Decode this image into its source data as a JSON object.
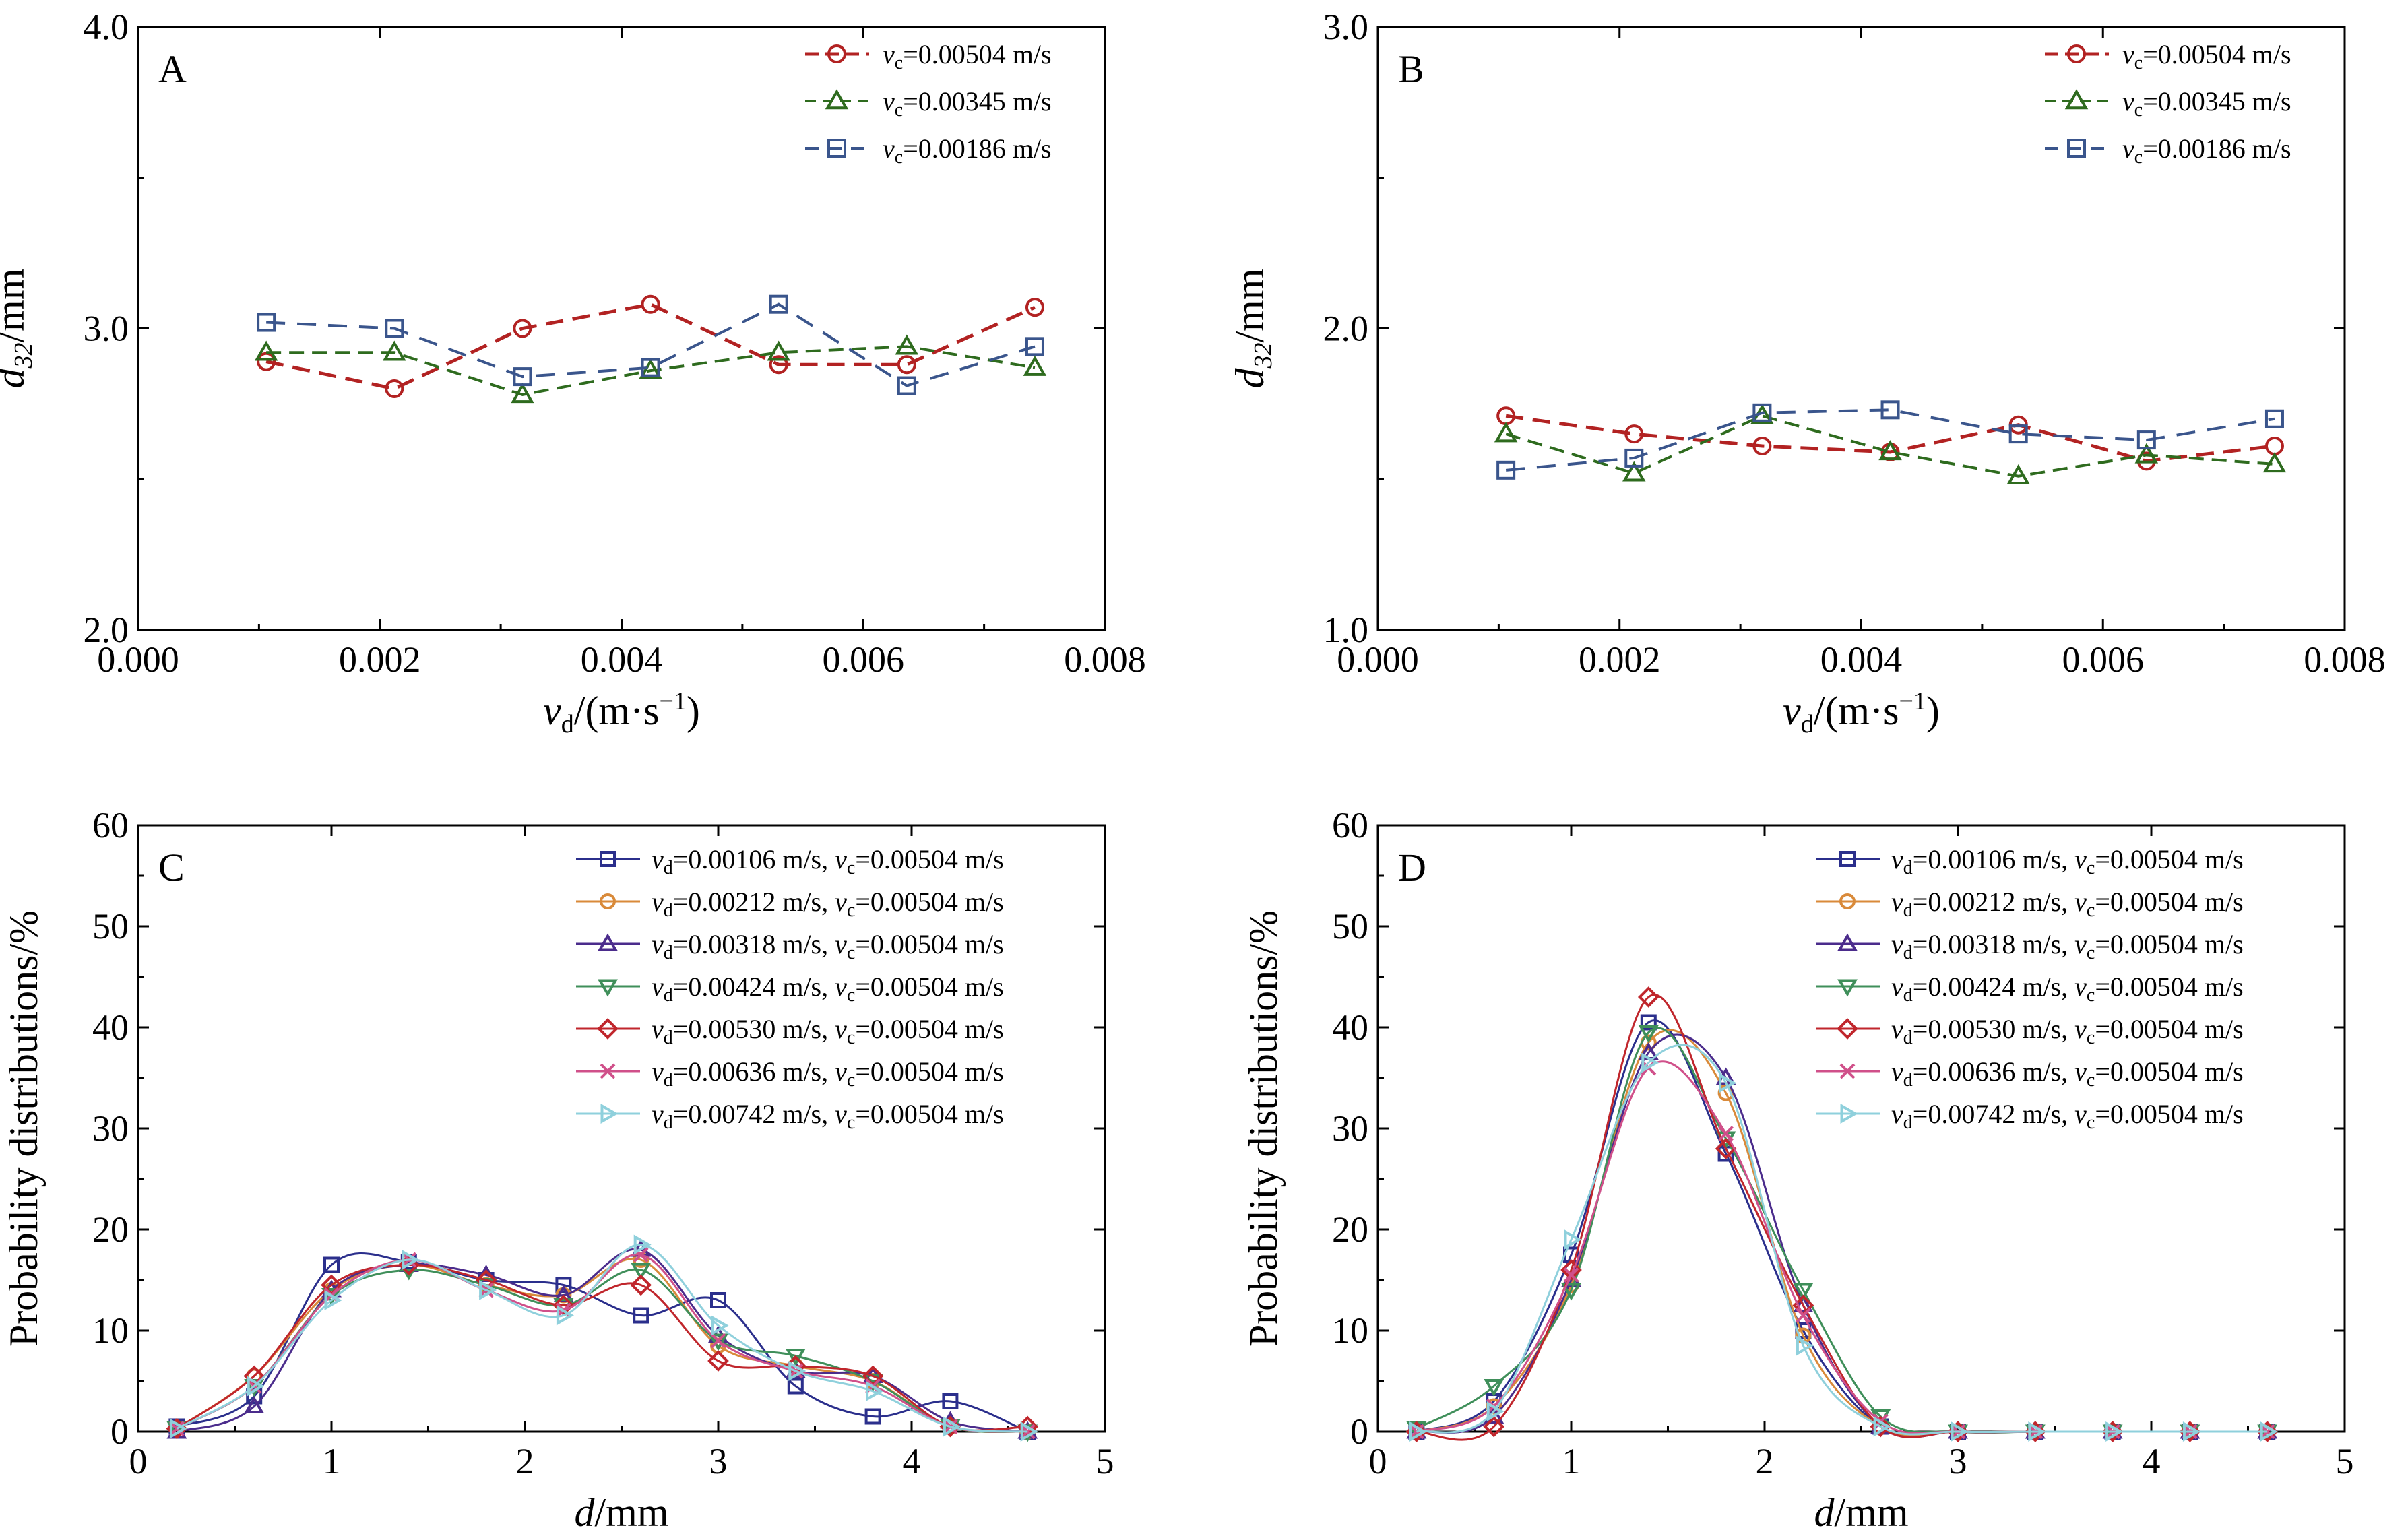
{
  "figure_label": "Figure panels A–D",
  "colors": {
    "red": "#b22222",
    "green": "#2e6b1e",
    "blue": "#3a558c",
    "navy": "#2b2f8c",
    "orange": "#d98a3a",
    "purple": "#4b2c8c",
    "teal_green": "#3f8f5a",
    "crimson": "#c0262c",
    "pink": "#d0508a",
    "cyan": "#8fd0dc"
  },
  "chart_data": [
    {
      "panel": "A",
      "type": "line",
      "xlabel_main": "v",
      "xlabel_sub": "d",
      "xlabel_unit": "/(m·s",
      "xlabel_sup": "−1",
      "xlabel_end": ")",
      "ylabel_main": "d",
      "ylabel_sub": "32",
      "ylabel_unit": "/mm",
      "xlim": [
        0,
        0.008
      ],
      "ylim": [
        2.0,
        4.0
      ],
      "xticks": [
        "0.000",
        "0.002",
        "0.004",
        "0.006",
        "0.008"
      ],
      "yticks": [
        "2.0",
        "3.0",
        "4.0"
      ],
      "legend_position": "top-right",
      "x": [
        0.00106,
        0.00212,
        0.00318,
        0.00424,
        0.0053,
        0.00636,
        0.00742
      ],
      "series": [
        {
          "label_main": "v",
          "label_sub": "c",
          "label_rest": "=0.00504 m/s",
          "color_key": "red",
          "marker": "circle",
          "values": [
            2.89,
            2.8,
            3.0,
            3.08,
            2.88,
            2.88,
            3.07
          ]
        },
        {
          "label_main": "v",
          "label_sub": "c",
          "label_rest": "=0.00345 m/s",
          "color_key": "green",
          "marker": "triangle-up",
          "values": [
            2.92,
            2.92,
            2.78,
            2.86,
            2.92,
            2.94,
            2.87
          ]
        },
        {
          "label_main": "v",
          "label_sub": "c",
          "label_rest": "=0.00186 m/s",
          "color_key": "blue",
          "marker": "square",
          "values": [
            3.02,
            3.0,
            2.84,
            2.87,
            3.08,
            2.81,
            2.94
          ]
        }
      ]
    },
    {
      "panel": "B",
      "type": "line",
      "xlabel_main": "v",
      "xlabel_sub": "d",
      "xlabel_unit": "/(m·s",
      "xlabel_sup": "−1",
      "xlabel_end": ")",
      "ylabel_main": "d",
      "ylabel_sub": "32",
      "ylabel_unit": "/mm",
      "xlim": [
        0,
        0.008
      ],
      "ylim": [
        1.0,
        3.0
      ],
      "xticks": [
        "0.000",
        "0.002",
        "0.004",
        "0.006",
        "0.008"
      ],
      "yticks": [
        "1.0",
        "2.0",
        "3.0"
      ],
      "legend_position": "top-right",
      "x": [
        0.00106,
        0.00212,
        0.00318,
        0.00424,
        0.0053,
        0.00636,
        0.00742
      ],
      "series": [
        {
          "label_main": "v",
          "label_sub": "c",
          "label_rest": "=0.00504 m/s",
          "color_key": "red",
          "marker": "circle",
          "values": [
            1.71,
            1.65,
            1.61,
            1.59,
            1.68,
            1.56,
            1.61
          ]
        },
        {
          "label_main": "v",
          "label_sub": "c",
          "label_rest": "=0.00345 m/s",
          "color_key": "green",
          "marker": "triangle-up",
          "values": [
            1.65,
            1.52,
            1.71,
            1.59,
            1.51,
            1.58,
            1.55
          ]
        },
        {
          "label_main": "v",
          "label_sub": "c",
          "label_rest": "=0.00186 m/s",
          "color_key": "blue",
          "marker": "square",
          "values": [
            1.53,
            1.57,
            1.72,
            1.73,
            1.65,
            1.63,
            1.7
          ]
        }
      ]
    },
    {
      "panel": "C",
      "type": "line",
      "xlabel_main": "d",
      "xlabel_unit": "/mm",
      "ylabel_text": "Probability distributions/%",
      "xlim": [
        0,
        5
      ],
      "ylim": [
        0,
        60
      ],
      "xticks": [
        "0",
        "1",
        "2",
        "3",
        "4",
        "5"
      ],
      "yticks": [
        "0",
        "10",
        "20",
        "30",
        "40",
        "50",
        "60"
      ],
      "legend_position": "top-right",
      "x": [
        0.2,
        0.6,
        1.0,
        1.4,
        1.8,
        2.2,
        2.6,
        3.0,
        3.4,
        3.8,
        4.2,
        4.6
      ],
      "series": [
        {
          "vd": "=0.00106 m/s, ",
          "vc": "=0.00504 m/s",
          "color_key": "navy",
          "marker": "square",
          "values": [
            0.5,
            3.5,
            16.5,
            16.8,
            15.0,
            14.5,
            11.5,
            13.0,
            4.5,
            1.5,
            3.0,
            0.0
          ]
        },
        {
          "vd": "=0.00212 m/s, ",
          "vc": "=0.00504 m/s",
          "color_key": "orange",
          "marker": "circle",
          "values": [
            0.3,
            5.5,
            14.0,
            16.5,
            14.5,
            13.5,
            17.0,
            8.5,
            6.5,
            5.0,
            0.5,
            0.0
          ]
        },
        {
          "vd": "=0.00318 m/s, ",
          "vc": "=0.00504 m/s",
          "color_key": "purple",
          "marker": "triangle-up",
          "values": [
            0.0,
            2.5,
            14.0,
            16.5,
            15.5,
            13.5,
            18.0,
            9.5,
            6.0,
            5.5,
            1.0,
            0.0
          ]
        },
        {
          "vd": "=0.00424 m/s, ",
          "vc": "=0.00504 m/s",
          "color_key": "teal_green",
          "marker": "triangle-down",
          "values": [
            0.3,
            4.5,
            13.5,
            16.0,
            14.5,
            12.5,
            16.0,
            9.0,
            7.5,
            5.0,
            0.5,
            0.0
          ]
        },
        {
          "vd": "=0.00530 m/s, ",
          "vc": "=0.00504 m/s",
          "color_key": "crimson",
          "marker": "diamond",
          "values": [
            0.3,
            5.5,
            14.5,
            16.5,
            15.0,
            12.5,
            14.5,
            7.0,
            6.5,
            5.5,
            0.5,
            0.5
          ]
        },
        {
          "vd": "=0.00636 m/s, ",
          "vc": "=0.00504 m/s",
          "color_key": "pink",
          "marker": "x",
          "values": [
            0.3,
            4.5,
            13.5,
            17.0,
            14.0,
            12.0,
            17.5,
            9.0,
            6.0,
            4.5,
            0.5,
            0.0
          ]
        },
        {
          "vd": "=0.00742 m/s, ",
          "vc": "=0.00504 m/s",
          "color_key": "cyan",
          "marker": "triangle-right",
          "values": [
            0.3,
            4.5,
            13.0,
            17.0,
            14.0,
            11.5,
            18.5,
            10.5,
            6.0,
            4.0,
            0.5,
            0.0
          ]
        }
      ]
    },
    {
      "panel": "D",
      "type": "line",
      "xlabel_main": "d",
      "xlabel_unit": "/mm",
      "ylabel_text": "Probability distributions/%",
      "xlim": [
        0,
        5
      ],
      "ylim": [
        0,
        60
      ],
      "xticks": [
        "0",
        "1",
        "2",
        "3",
        "4",
        "5"
      ],
      "yticks": [
        "0",
        "10",
        "20",
        "30",
        "40",
        "50",
        "60"
      ],
      "legend_position": "top-right",
      "x": [
        0.2,
        0.6,
        1.0,
        1.4,
        1.8,
        2.2,
        2.6,
        3.0,
        3.4,
        3.8,
        4.2,
        4.6
      ],
      "series": [
        {
          "vd": "=0.00106 m/s, ",
          "vc": "=0.00504 m/s",
          "color_key": "navy",
          "marker": "square",
          "values": [
            0.0,
            3.0,
            17.5,
            40.5,
            27.5,
            10.0,
            0.5,
            0.0,
            0.0,
            0.0,
            0.0,
            0.0
          ]
        },
        {
          "vd": "=0.00212 m/s, ",
          "vc": "=0.00504 m/s",
          "color_key": "orange",
          "marker": "circle",
          "values": [
            0.0,
            2.5,
            14.5,
            38.5,
            33.5,
            9.5,
            0.5,
            0.0,
            0.0,
            0.0,
            0.0,
            0.0
          ]
        },
        {
          "vd": "=0.00318 m/s, ",
          "vc": "=0.00504 m/s",
          "color_key": "purple",
          "marker": "triangle-up",
          "values": [
            0.0,
            1.5,
            15.0,
            37.5,
            35.0,
            12.5,
            0.5,
            0.0,
            0.0,
            0.0,
            0.0,
            0.0
          ]
        },
        {
          "vd": "=0.00424 m/s, ",
          "vc": "=0.00504 m/s",
          "color_key": "teal_green",
          "marker": "triangle-down",
          "values": [
            0.3,
            4.5,
            14.0,
            39.5,
            29.0,
            14.0,
            1.5,
            0.0,
            0.0,
            0.0,
            0.0,
            0.0
          ]
        },
        {
          "vd": "=0.00530 m/s, ",
          "vc": "=0.00504 m/s",
          "color_key": "crimson",
          "marker": "diamond",
          "values": [
            0.0,
            0.5,
            16.0,
            43.0,
            28.0,
            12.5,
            0.5,
            0.0,
            0.0,
            0.0,
            0.0,
            0.0
          ]
        },
        {
          "vd": "=0.00636 m/s, ",
          "vc": "=0.00504 m/s",
          "color_key": "pink",
          "marker": "x",
          "values": [
            0.0,
            2.5,
            15.5,
            36.0,
            29.5,
            11.5,
            1.0,
            0.0,
            0.0,
            0.0,
            0.0,
            0.0
          ]
        },
        {
          "vd": "=0.00742 m/s, ",
          "vc": "=0.00504 m/s",
          "color_key": "cyan",
          "marker": "triangle-right",
          "values": [
            0.0,
            2.0,
            19.0,
            36.5,
            34.5,
            8.5,
            0.5,
            0.0,
            0.0,
            0.0,
            0.0,
            0.0
          ]
        }
      ]
    }
  ]
}
